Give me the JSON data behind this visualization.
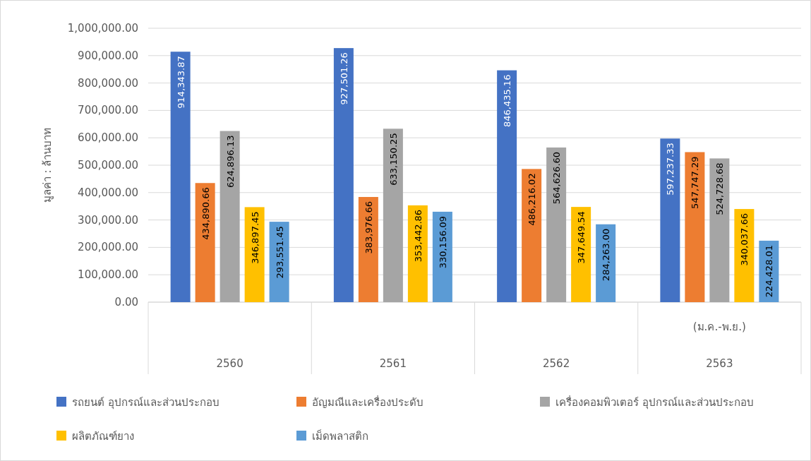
{
  "chart_data": {
    "type": "bar",
    "ylabel": "มูลค่า : ล้านบาท",
    "categories": [
      "2560",
      "2561",
      "2562",
      "2563"
    ],
    "annotations": [
      "(ม.ค.-พ.ย.)"
    ],
    "series": [
      {
        "name": "รถยนต์ อุปกรณ์และส่วนประกอบ",
        "color": "#4472c4",
        "values": [
          914343.87,
          927501.26,
          846435.16,
          597237.33
        ],
        "value_labels": [
          "914,343.87",
          "927,501.26",
          "846,435.16",
          "597,237.33"
        ]
      },
      {
        "name": "อัญมณีและเครื่องประดับ",
        "color": "#ed7d31",
        "values": [
          434890.66,
          383976.66,
          486216.02,
          547747.29
        ],
        "value_labels": [
          "434,890.66",
          "383,976.66",
          "486,216.02",
          "547,747.29"
        ]
      },
      {
        "name": "เครื่องคอมพิวเตอร์ อุปกรณ์และส่วนประกอบ",
        "color": "#a5a5a5",
        "values": [
          624896.13,
          633150.25,
          564626.6,
          524728.68
        ],
        "value_labels": [
          "624,896.13",
          "633,150.25",
          "564,626.60",
          "524,728.68"
        ]
      },
      {
        "name": "ผลิตภัณฑ์ยาง",
        "color": "#ffc000",
        "values": [
          346897.45,
          353442.86,
          347649.54,
          340037.66
        ],
        "value_labels": [
          "346,897.45",
          "353,442.86",
          "347,649.54",
          "340,037.66"
        ]
      },
      {
        "name": "เม็ดพลาสติก",
        "color": "#5b9bd5",
        "values": [
          293551.45,
          330156.09,
          284263.0,
          224428.01
        ],
        "value_labels": [
          "293,551.45",
          "330,156.09",
          "284,263.00",
          "224,428.01"
        ]
      }
    ],
    "ylim": [
      0,
      1000000
    ],
    "yticks": [
      {
        "value": 0,
        "label": "0.00"
      },
      {
        "value": 100000,
        "label": "100,000.00"
      },
      {
        "value": 200000,
        "label": "200,000.00"
      },
      {
        "value": 300000,
        "label": "300,000.00"
      },
      {
        "value": 400000,
        "label": "400,000.00"
      },
      {
        "value": 500000,
        "label": "500,000.00"
      },
      {
        "value": 600000,
        "label": "600,000.00"
      },
      {
        "value": 700000,
        "label": "700,000.00"
      },
      {
        "value": 800000,
        "label": "800,000.00"
      },
      {
        "value": 900000,
        "label": "900,000.00"
      },
      {
        "value": 1000000,
        "label": "1,000,000.00"
      }
    ],
    "grid": "y",
    "legend": "bottom"
  }
}
